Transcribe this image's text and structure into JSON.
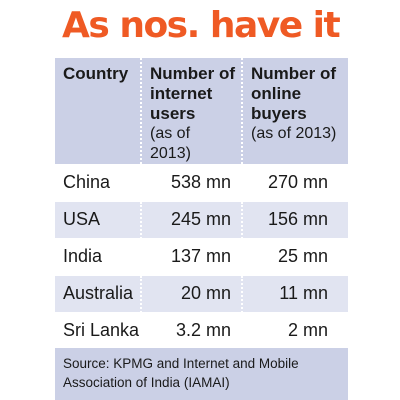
{
  "title": "As nos. have it",
  "table": {
    "headers": [
      {
        "main": "Country",
        "sub": ""
      },
      {
        "main": "Number of internet users",
        "sub": "(as of 2013)"
      },
      {
        "main": "Number of online buyers",
        "sub": "(as of 2013)"
      }
    ],
    "rows": [
      {
        "country": "China",
        "internet_users": "538 mn",
        "online_buyers": "270 mn"
      },
      {
        "country": "USA",
        "internet_users": "245 mn",
        "online_buyers": "156 mn"
      },
      {
        "country": "India",
        "internet_users": "137 mn",
        "online_buyers": "25 mn"
      },
      {
        "country": "Australia",
        "internet_users": "20 mn",
        "online_buyers": "11 mn"
      },
      {
        "country": "Sri Lanka",
        "internet_users": "3.2 mn",
        "online_buyers": "2 mn"
      }
    ]
  },
  "source": "Source: KPMG and Internet and Mobile Association of India (IAMAI)",
  "colors": {
    "title": "#ef5a24",
    "header_bg": "#cbd0e6",
    "row_shade": "#e1e4f1"
  }
}
